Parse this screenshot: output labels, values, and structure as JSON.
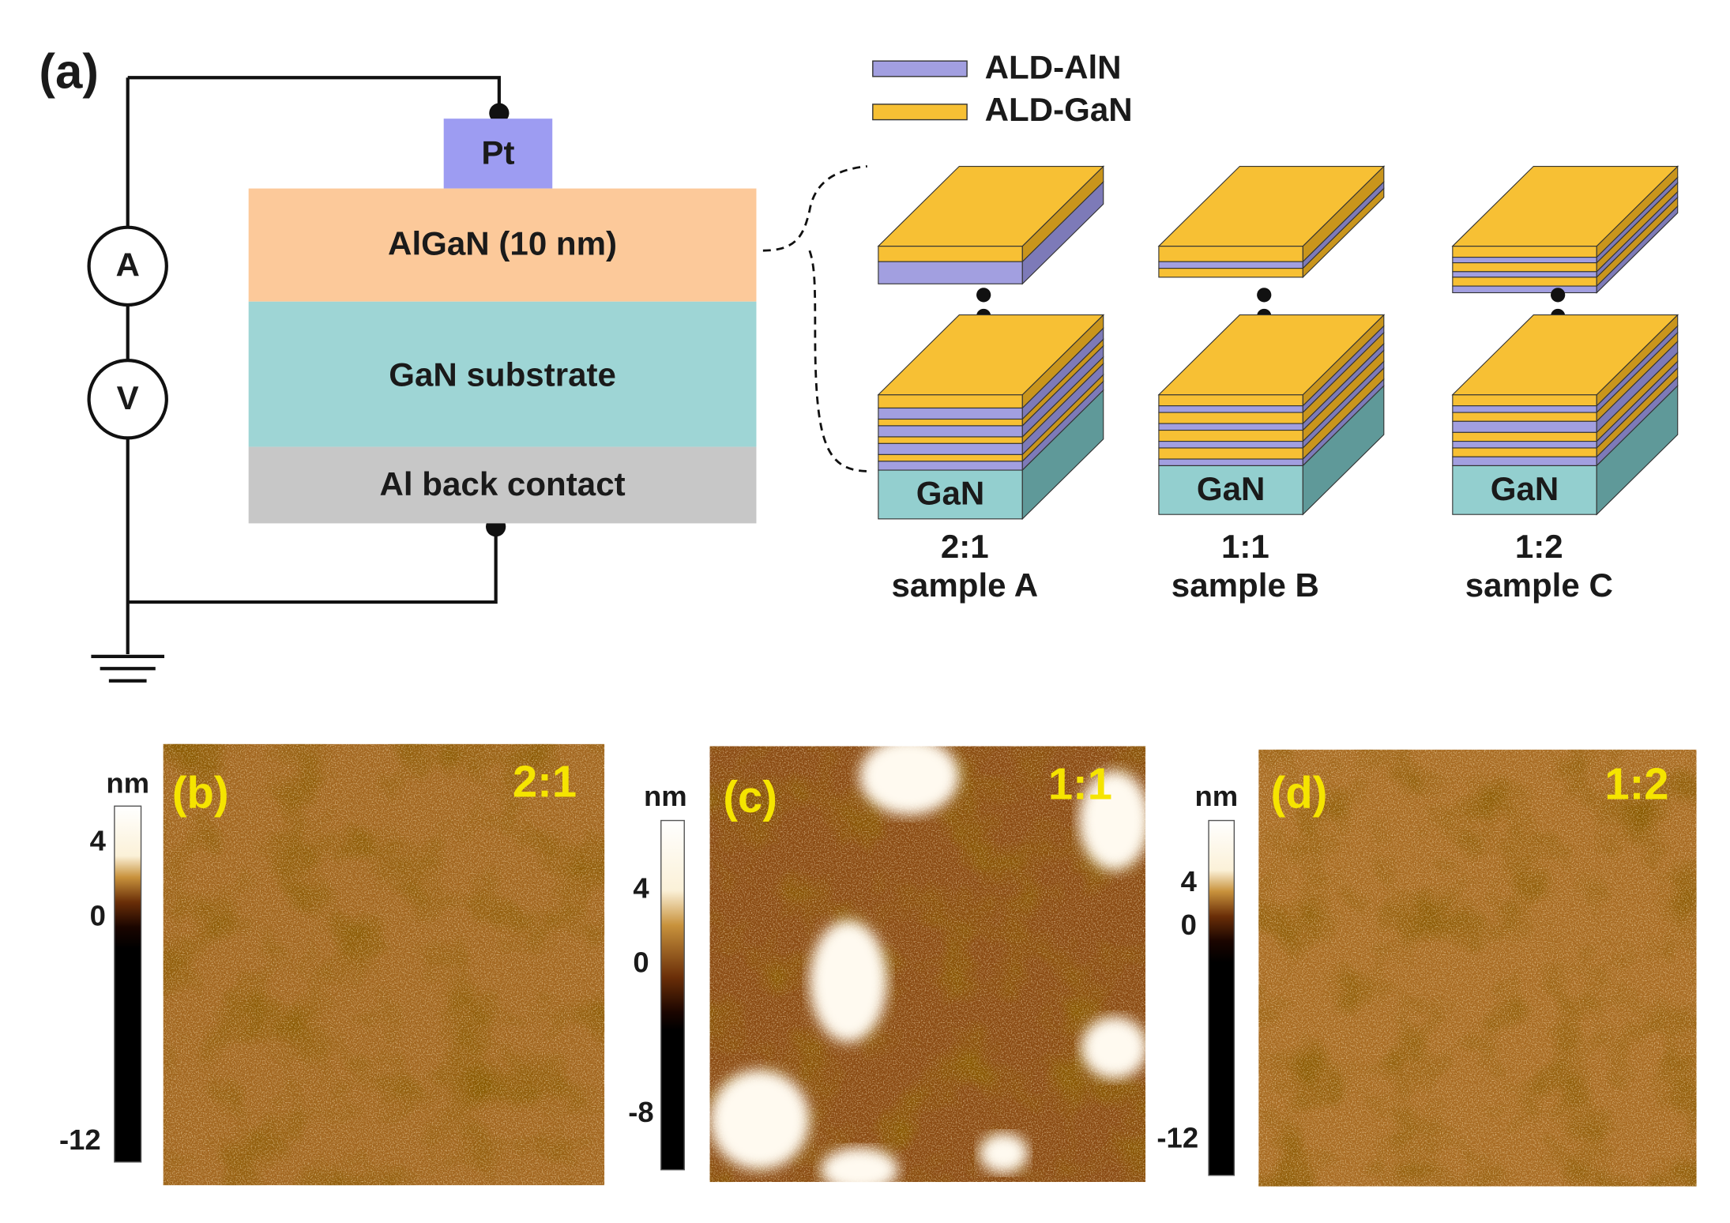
{
  "panel_a": {
    "label": "(a)",
    "legend": [
      "ALD-AlN",
      "ALD-GaN"
    ],
    "layers": {
      "pt": "Pt",
      "algan": "AlGaN (10 nm)",
      "gan_substrate": "GaN substrate",
      "back_contact": "Al back contact"
    },
    "meters": [
      "A",
      "V"
    ],
    "samples": [
      {
        "substrate": "GaN",
        "ratio": "2:1",
        "name": "sample A"
      },
      {
        "substrate": "GaN",
        "ratio": "1:1",
        "name": "sample B"
      },
      {
        "substrate": "GaN",
        "ratio": "1:2",
        "name": "sample C"
      }
    ]
  },
  "afm_panels": [
    {
      "label": "(b)",
      "ratio": "2:1",
      "unit": "nm",
      "scale_ticks": [
        "4",
        "0",
        "-12"
      ]
    },
    {
      "label": "(c)",
      "ratio": "1:1",
      "unit": "nm",
      "scale_ticks": [
        "4",
        "0",
        "-8"
      ]
    },
    {
      "label": "(d)",
      "ratio": "1:2",
      "unit": "nm",
      "scale_ticks": [
        "4",
        "0",
        "-12"
      ]
    }
  ]
}
